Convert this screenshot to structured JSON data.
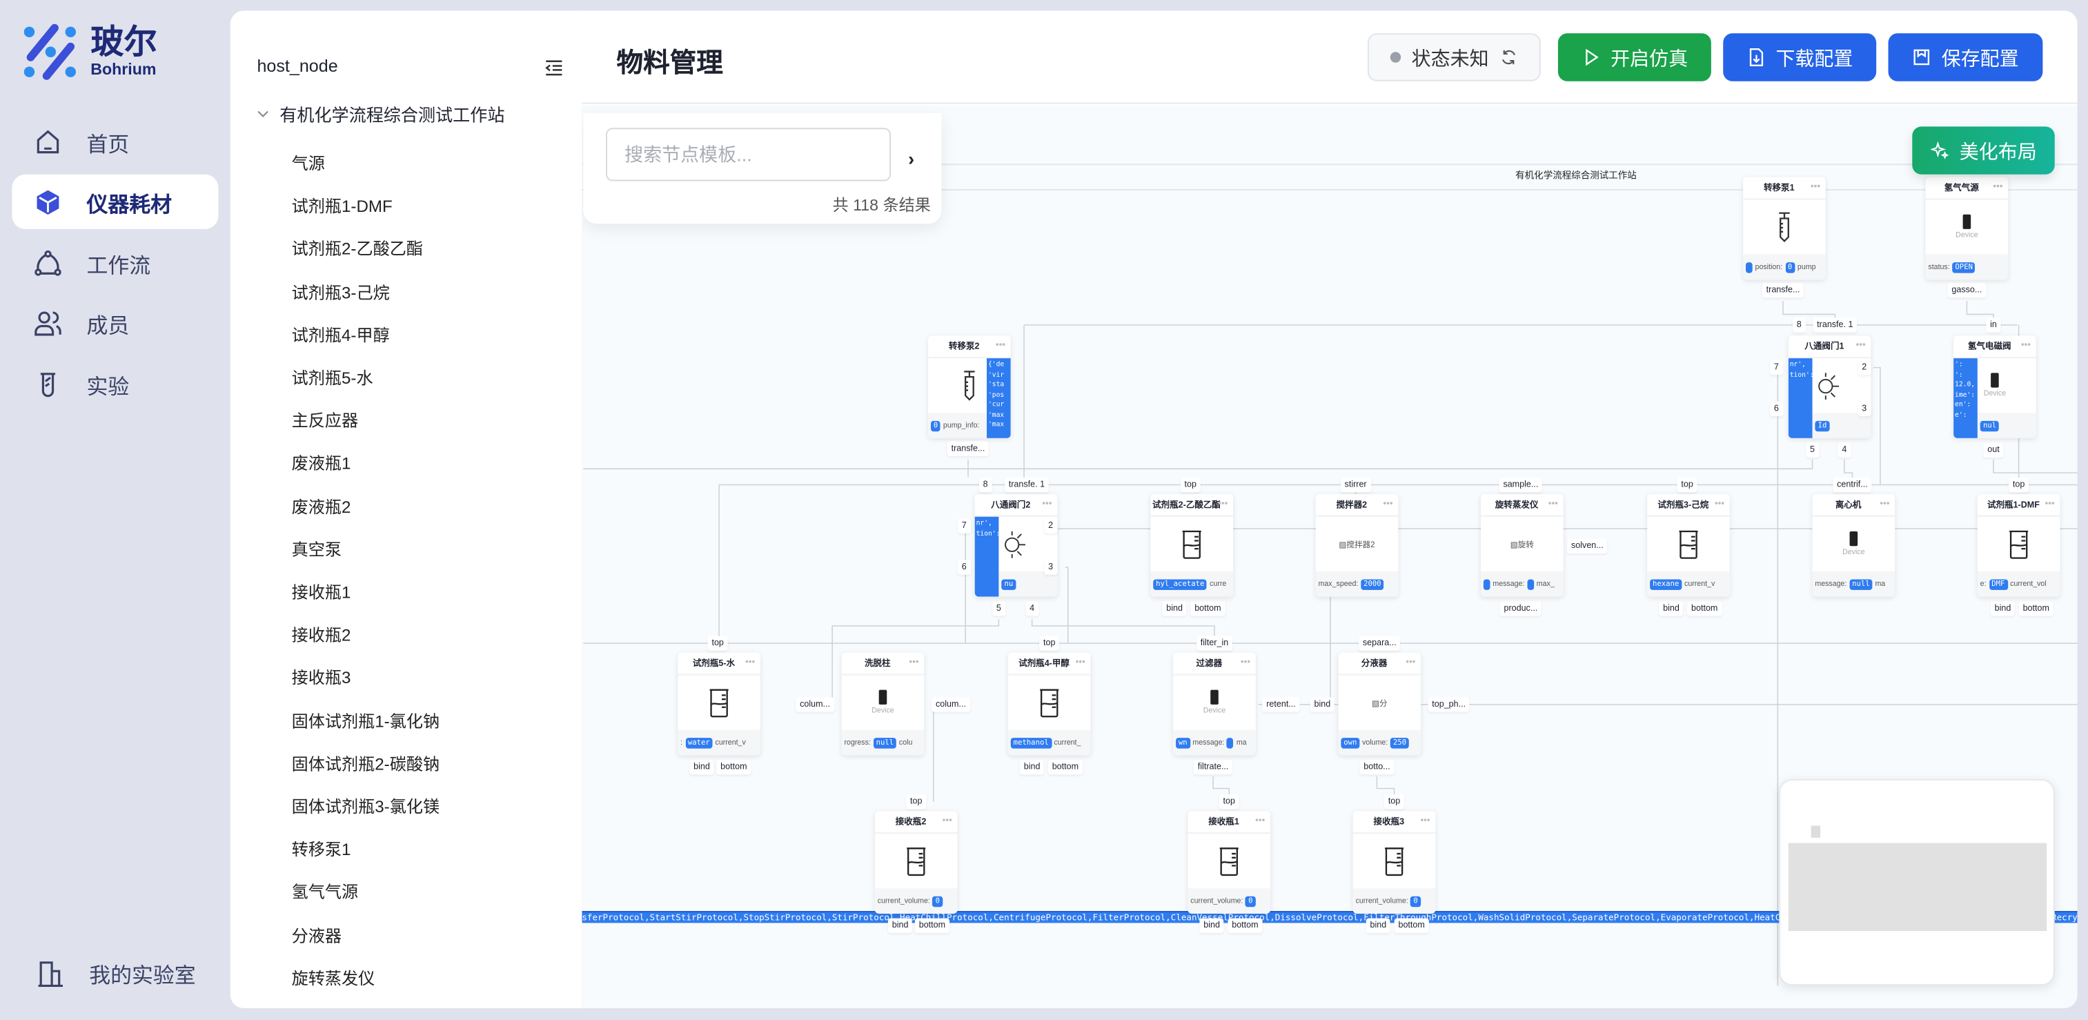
{
  "brand": {
    "name_cn": "玻尔",
    "name_en": "Bohrium",
    "colors": {
      "primary": "#1e2a78",
      "accent": "#2f7cf0",
      "green": "#1aa34a",
      "blue": "#2563e8",
      "teal": "#16b49b"
    }
  },
  "nav": {
    "items": [
      {
        "label": "首页",
        "icon": "home-icon"
      },
      {
        "label": "仪器耗材",
        "icon": "cube-icon",
        "active": true
      },
      {
        "label": "工作流",
        "icon": "workflow-icon"
      },
      {
        "label": "成员",
        "icon": "users-icon"
      },
      {
        "label": "实验",
        "icon": "flask-icon"
      }
    ],
    "bottom": {
      "label": "我的实验室",
      "icon": "building-icon"
    }
  },
  "tree": {
    "root": "host_node",
    "group": "有机化学流程综合测试工作站",
    "items": [
      "气源",
      "试剂瓶1-DMF",
      "试剂瓶2-乙酸乙酯",
      "试剂瓶3-己烷",
      "试剂瓶4-甲醇",
      "试剂瓶5-水",
      "主反应器",
      "废液瓶1",
      "废液瓶2",
      "真空泵",
      "接收瓶1",
      "接收瓶2",
      "接收瓶3",
      "固体试剂瓶1-氯化钠",
      "固体试剂瓶2-碳酸钠",
      "固体试剂瓶3-氯化镁",
      "转移泵1",
      "氢气气源",
      "分液器",
      "旋转蒸发仪"
    ]
  },
  "header": {
    "title": "物料管理",
    "status": "状态未知",
    "start_sim": "开启仿真",
    "download": "下载配置",
    "save": "保存配置"
  },
  "search": {
    "placeholder": "搜索节点模板...",
    "value": "",
    "count": "共 118 条结果"
  },
  "canvas": {
    "beautify": "美化布局",
    "group_title": "有机化学流程综合测试工作站",
    "protocols": "sferProtocol,StartStirProtocol,StopStirProtocol,StirProtocol,HeatChillProtocol,CentrifugeProtocol,FilterProtocol,CleanVesselProtocol,DissolveProtocol,FilterThroughProtocol,WashSolidProtocol,SeparateProtocol,EvaporateProtocol,HeatChillProtocol,AdjustPHProtocol,ResetHandlingProtocol,RecrystallizeProtocol,AndR",
    "device_label": "Device",
    "nodes": [
      {
        "title": "转移泵1",
        "icon": "syringe",
        "footer": [
          {
            "p": ""
          },
          "position:",
          {
            "p": "0"
          },
          "pump"
        ]
      },
      {
        "title": "氢气气源",
        "icon": "device",
        "footer": [
          "status:",
          {
            "p": "OPEN"
          }
        ]
      },
      {
        "title": "转移泵2",
        "icon": "syringe",
        "panel_right": [
          "{'de",
          "'vir",
          "'sta",
          "'pos",
          "'cur",
          "'max",
          "'max"
        ],
        "footer": [
          {
            "p": "0"
          },
          "pump_info:"
        ]
      },
      {
        "title": "八通阀门1",
        "icon": "sun",
        "panel_left": [
          "nr',",
          "tion':",
          "",
          "",
          "",
          ""
        ],
        "footer": [
          "status:",
          {
            "p": "Id"
          }
        ]
      },
      {
        "title": "氢气电磁阀",
        "icon": "device",
        "panel_left": [
          "':",
          "':",
          "",
          "12.0,",
          "ime':",
          "en':",
          "",
          "e':"
        ],
        "footer": [
          "status:",
          {
            "p": "nul"
          }
        ]
      },
      {
        "title": "八通阀门2",
        "icon": "sun",
        "panel_left": [
          "nr',",
          "tion':",
          "",
          "",
          "",
          ""
        ],
        "footer": [
          "status:",
          {
            "p": "nu"
          }
        ]
      },
      {
        "title": "试剂瓶2-乙酸乙酯",
        "icon": "beaker",
        "footer": [
          {
            "p": "hyl_acetate"
          },
          "curre"
        ]
      },
      {
        "title": "搅拌器2",
        "icon": "broken-image",
        "alt": "搅拌器2",
        "footer": [
          "max_speed:",
          {
            "p": "2000"
          }
        ]
      },
      {
        "title": "旋转蒸发仪",
        "icon": "broken-image",
        "alt": "旋转",
        "footer": [
          {
            "p": ""
          },
          "message:",
          {
            "p": ""
          },
          "max_"
        ]
      },
      {
        "title": "试剂瓶3-己烷",
        "icon": "beaker",
        "footer": [
          {
            "p": "hexane"
          },
          "current_v"
        ]
      },
      {
        "title": "离心机",
        "icon": "device",
        "footer": [
          "message:",
          {
            "p": "null"
          },
          "ma"
        ]
      },
      {
        "title": "试剂瓶1-DMF",
        "icon": "beaker",
        "footer": [
          "e:",
          {
            "p": "DMF"
          },
          "current_vol"
        ]
      },
      {
        "title": "试剂瓶5-水",
        "icon": "beaker",
        "footer": [
          ":",
          {
            "p": "water"
          },
          "current_v"
        ]
      },
      {
        "title": "洗脱柱",
        "icon": "device",
        "footer": [
          "rogress:",
          {
            "p": "null"
          },
          "colu"
        ]
      },
      {
        "title": "试剂瓶4-甲醇",
        "icon": "beaker",
        "footer": [
          {
            "p": "methanol"
          },
          "current_"
        ]
      },
      {
        "title": "过滤器",
        "icon": "device",
        "footer": [
          {
            "p": "wn"
          },
          "message:",
          {
            "p": ""
          },
          "ma"
        ]
      },
      {
        "title": "分液器",
        "icon": "broken-image",
        "alt": "分",
        "footer": [
          {
            "p": "own"
          },
          "volume:",
          {
            "p": "250"
          }
        ]
      },
      {
        "title": "接收瓶2",
        "icon": "beaker",
        "footer": [
          "current_volume:",
          {
            "p": "0"
          }
        ]
      },
      {
        "title": "接收瓶1",
        "icon": "beaker",
        "footer": [
          "current_volume:",
          {
            "p": "0"
          }
        ]
      },
      {
        "title": "接收瓶3",
        "icon": "beaker",
        "footer": [
          "current_volume:",
          {
            "p": "0"
          }
        ]
      }
    ],
    "tags": [
      "transfe...",
      "gasso...",
      "8",
      "transfe.  1",
      "in",
      "transfe...",
      "8",
      "transfe.  1",
      "top",
      "stirrer",
      "sample...",
      "top",
      "centrif...",
      "top",
      "7",
      "2",
      "6",
      "3",
      "5",
      "4",
      "out",
      "7",
      "2",
      "6",
      "3",
      "5",
      "4",
      "bind",
      "bottom",
      "bind",
      "bottom",
      "bind",
      "bottom",
      "produc...",
      "solven...",
      "top",
      "top",
      "filter_in",
      "separa...",
      "colum...",
      "colum...",
      "retent...",
      "bind",
      "top_ph...",
      "bind",
      "bottom",
      "bind",
      "bottom",
      "filtrate...",
      "botto...",
      "top",
      "top",
      "top",
      "bind",
      "bottom",
      "bind",
      "bottom",
      "bind",
      "bottom"
    ]
  }
}
